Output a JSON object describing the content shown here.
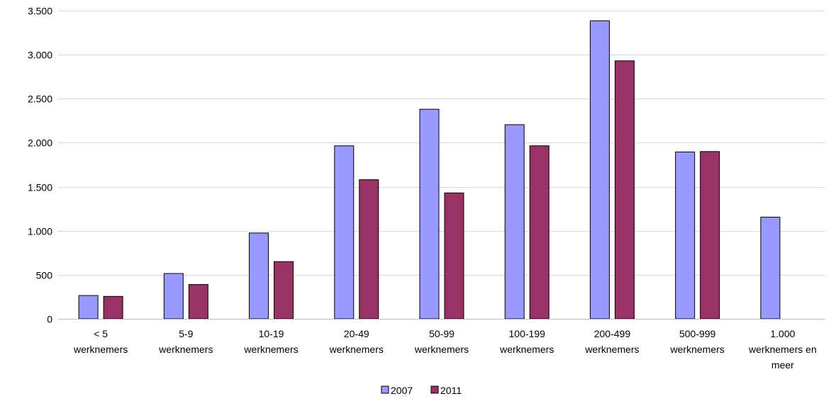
{
  "chart_data": {
    "type": "bar",
    "categories": [
      "< 5 werknemers",
      "5-9 werknemers",
      "10-19 werknemers",
      "20-49 werknemers",
      "50-99 werknemers",
      "100-199 werknemers",
      "200-499 werknemers",
      "500-999 werknemers",
      "1.000 werknemers en meer"
    ],
    "category_lines": [
      [
        "< 5",
        "werknemers"
      ],
      [
        "5-9",
        "werknemers"
      ],
      [
        "10-19",
        "werknemers"
      ],
      [
        "20-49",
        "werknemers"
      ],
      [
        "50-99",
        "werknemers"
      ],
      [
        "100-199",
        "werknemers"
      ],
      [
        "200-499",
        "werknemers"
      ],
      [
        "500-999",
        "werknemers"
      ],
      [
        "1.000",
        "werknemers en",
        "meer"
      ]
    ],
    "series": [
      {
        "name": "2007",
        "color": "#9999ff",
        "values": [
          265,
          515,
          975,
          1965,
          2380,
          2205,
          3385,
          1895,
          1155
        ]
      },
      {
        "name": "2011",
        "color": "#993366",
        "values": [
          255,
          390,
          650,
          1580,
          1430,
          1965,
          2930,
          1900,
          null
        ]
      }
    ],
    "ylim": [
      0,
      3500
    ],
    "yticks": [
      0,
      500,
      1000,
      1500,
      2000,
      2500,
      3000,
      3500
    ],
    "ytick_labels": [
      "0",
      "500",
      "1.000",
      "1.500",
      "2.000",
      "2.500",
      "3.000",
      "3.500"
    ],
    "grid": true,
    "legend_position": "bottom",
    "title": "",
    "xlabel": "",
    "ylabel": ""
  }
}
